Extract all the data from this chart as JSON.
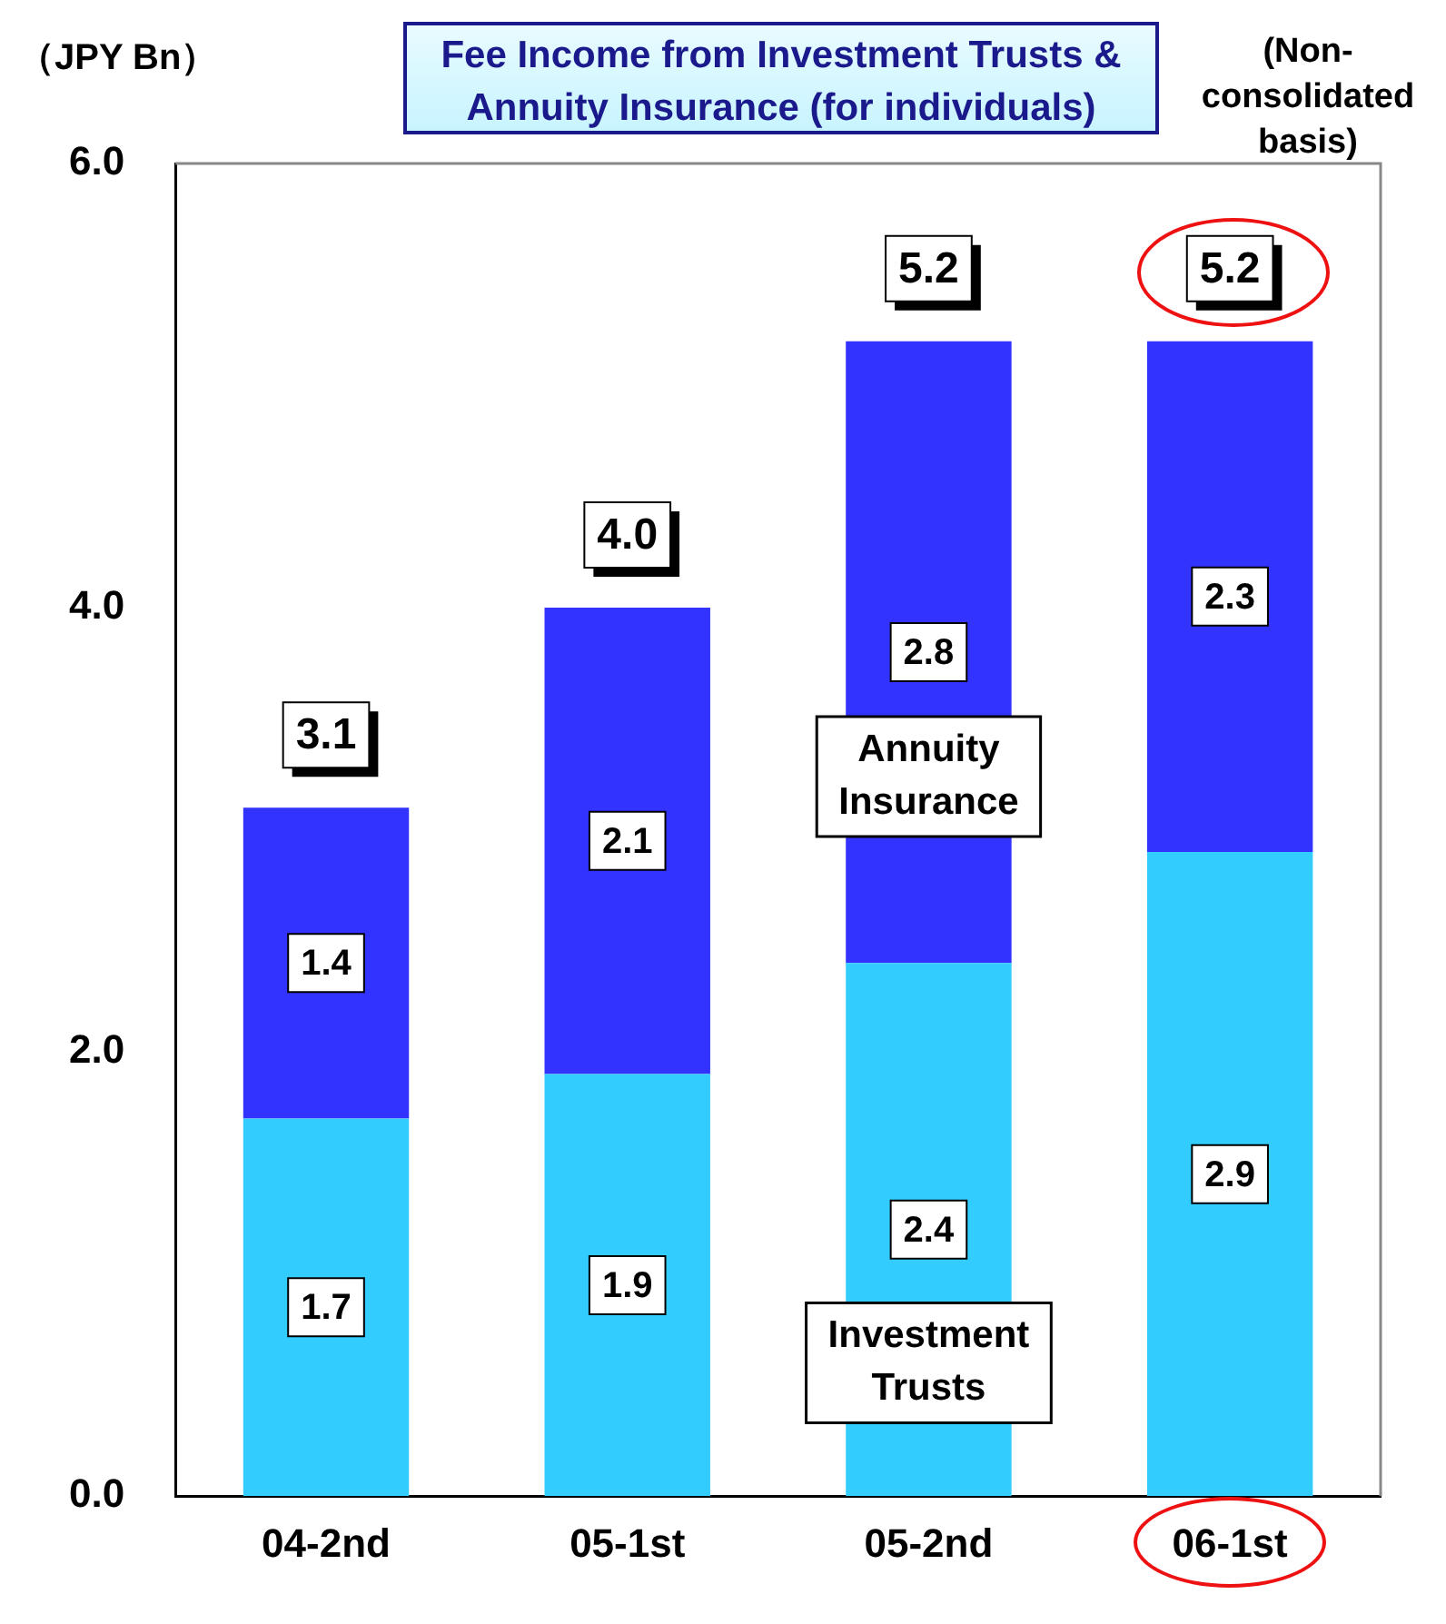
{
  "chart_data": {
    "type": "bar",
    "title": "Fee Income from Investment Trusts & Annuity Insurance (for individuals)",
    "ylabel": "（JPY Bn）",
    "annotations": [
      "(Non-consolidated basis)"
    ],
    "categories": [
      "04-2nd",
      "05-1st",
      "05-2nd",
      "06-1st"
    ],
    "stacked": true,
    "data_labels": true,
    "legend": false,
    "grid": false,
    "series": [
      {
        "name": "Investment Trusts",
        "color": "#33ccff",
        "values": [
          1.7,
          1.9,
          2.4,
          2.9
        ]
      },
      {
        "name": "Annuity Insurance",
        "color": "#3333ff",
        "values": [
          1.4,
          2.1,
          2.8,
          2.3
        ]
      }
    ],
    "totals": [
      "3.1",
      "4.0",
      "5.2",
      "5.2"
    ],
    "ylim": [
      0,
      6
    ],
    "yticks": [
      {
        "value": 0,
        "label": "0.0"
      },
      {
        "value": 2,
        "label": "2.0"
      },
      {
        "value": 4,
        "label": "4.0"
      },
      {
        "value": 6,
        "label": "6.0"
      }
    ]
  }
}
